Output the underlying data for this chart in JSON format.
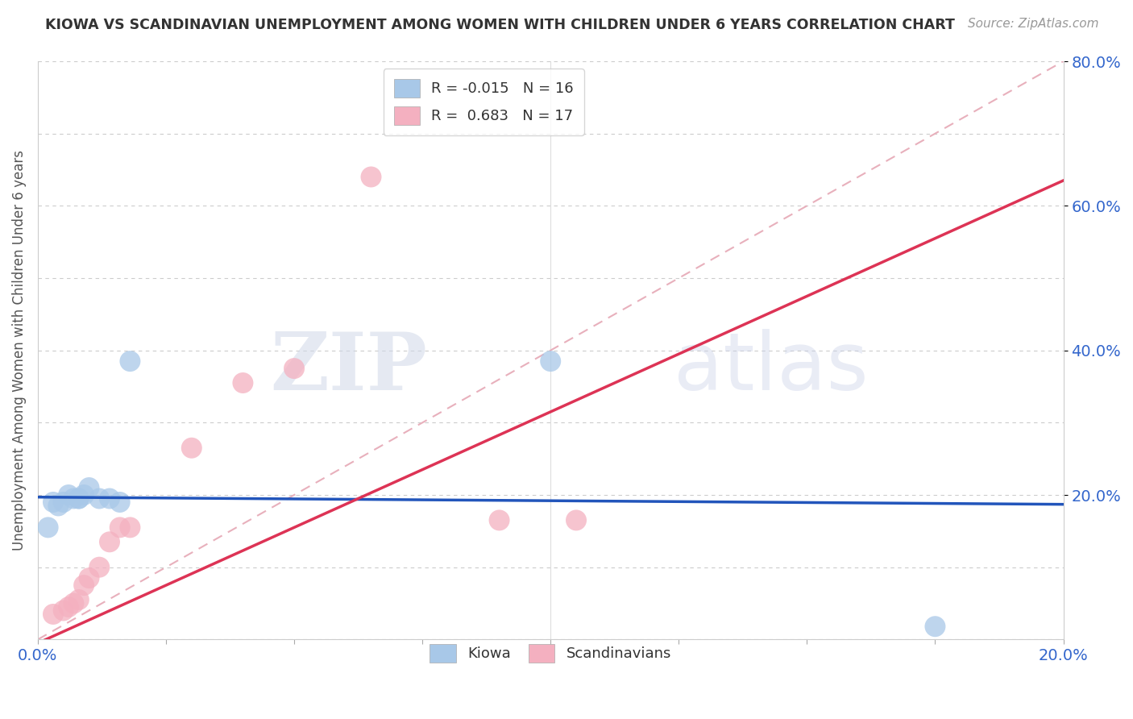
{
  "title": "KIOWA VS SCANDINAVIAN UNEMPLOYMENT AMONG WOMEN WITH CHILDREN UNDER 6 YEARS CORRELATION CHART",
  "source": "Source: ZipAtlas.com",
  "ylabel": "Unemployment Among Women with Children Under 6 years",
  "xlabel": "",
  "xlim": [
    0.0,
    0.2
  ],
  "ylim": [
    0.0,
    0.8
  ],
  "xticks": [
    0.0,
    0.025,
    0.05,
    0.075,
    0.1,
    0.125,
    0.15,
    0.175,
    0.2
  ],
  "yticks": [
    0.0,
    0.1,
    0.2,
    0.3,
    0.4,
    0.5,
    0.6,
    0.7,
    0.8
  ],
  "ytick_show": [
    0.2,
    0.4,
    0.6,
    0.8
  ],
  "kiowa_R": -0.015,
  "kiowa_N": 16,
  "scand_R": 0.683,
  "scand_N": 17,
  "kiowa_color": "#a8c8e8",
  "scand_color": "#f4b0c0",
  "kiowa_line_color": "#2255bb",
  "scand_line_color": "#dd3355",
  "ref_line_color": "#e8b0bc",
  "background_color": "#ffffff",
  "watermark_zip": "ZIP",
  "watermark_atlas": "atlas",
  "kiowa_line_y_intercept": 0.197,
  "kiowa_line_slope": -0.05,
  "scand_line_y_intercept": -0.005,
  "scand_line_slope": 3.2,
  "kiowa_x": [
    0.002,
    0.003,
    0.004,
    0.005,
    0.006,
    0.007,
    0.008,
    0.008,
    0.009,
    0.01,
    0.012,
    0.014,
    0.016,
    0.018,
    0.1,
    0.175
  ],
  "kiowa_y": [
    0.155,
    0.19,
    0.185,
    0.19,
    0.2,
    0.195,
    0.195,
    0.195,
    0.2,
    0.21,
    0.195,
    0.195,
    0.19,
    0.385,
    0.385,
    0.018
  ],
  "scand_x": [
    0.003,
    0.005,
    0.006,
    0.007,
    0.008,
    0.009,
    0.01,
    0.012,
    0.014,
    0.016,
    0.018,
    0.03,
    0.04,
    0.05,
    0.065,
    0.09,
    0.105
  ],
  "scand_y": [
    0.035,
    0.04,
    0.045,
    0.05,
    0.055,
    0.075,
    0.085,
    0.1,
    0.135,
    0.155,
    0.155,
    0.265,
    0.355,
    0.375,
    0.64,
    0.165,
    0.165
  ]
}
